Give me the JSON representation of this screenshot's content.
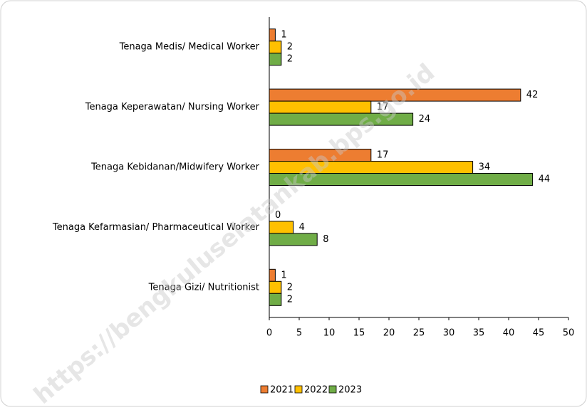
{
  "chart_data": {
    "type": "barh",
    "categories": [
      "Tenaga Medis/ Medical Worker",
      "Tenaga Keperawatan/ Nursing Worker",
      "Tenaga Kebidanan/Midwifery Worker",
      "Tenaga Kefarmasian/ Pharmaceutical Worker",
      "Tenaga Gizi/ Nutritionist"
    ],
    "series": [
      {
        "name": "2021",
        "color": "#ed7d31",
        "values": [
          1,
          42,
          17,
          0,
          1
        ]
      },
      {
        "name": "2022",
        "color": "#ffc000",
        "values": [
          2,
          17,
          34,
          4,
          2
        ]
      },
      {
        "name": "2023",
        "color": "#70ad47",
        "values": [
          2,
          24,
          44,
          8,
          2
        ]
      }
    ],
    "xlim": [
      0,
      50
    ],
    "xticks": [
      0,
      5,
      10,
      15,
      20,
      25,
      30,
      35,
      40,
      45,
      50
    ],
    "grid": false,
    "legend": "bottom",
    "watermark": "https://bengkuluselatankab.bps.go.id"
  }
}
